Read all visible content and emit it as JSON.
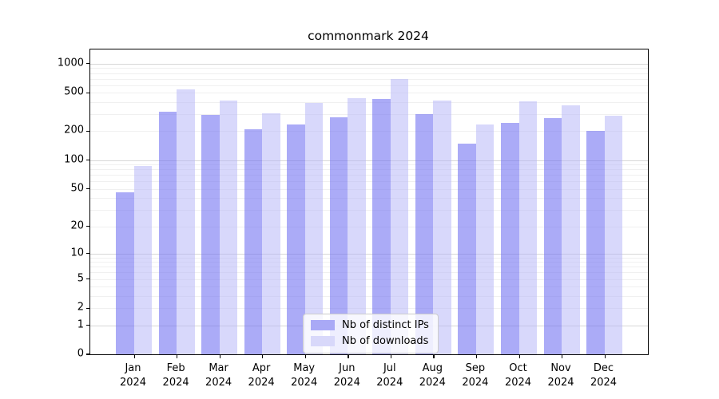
{
  "figure": {
    "background_color": "#ffffff",
    "text_color": "#000000"
  },
  "chart_data": {
    "type": "bar",
    "title": "commonmark 2024",
    "categories": [
      "Jan\n2024",
      "Feb\n2024",
      "Mar\n2024",
      "Apr\n2024",
      "May\n2024",
      "Jun\n2024",
      "Jul\n2024",
      "Aug\n2024",
      "Sep\n2024",
      "Oct\n2024",
      "Nov\n2024",
      "Dec\n2024"
    ],
    "series": [
      {
        "name": "Nb of distinct IPs",
        "color": "#a9a9f6",
        "fill_rgba": "rgba(115, 115, 242, 0.6)",
        "values": [
          46,
          320,
          295,
          211,
          234,
          278,
          432,
          298,
          148,
          246,
          276,
          202
        ]
      },
      {
        "name": "Nb of downloads",
        "color": "#d8d8fa",
        "fill_rgba": "rgba(180, 180, 248, 0.52)",
        "values": [
          87,
          545,
          417,
          309,
          391,
          436,
          699,
          412,
          237,
          407,
          372,
          292
        ]
      }
    ],
    "xlabel": "",
    "ylabel": "",
    "y_ticks": [
      0,
      1,
      2,
      5,
      10,
      20,
      50,
      100,
      200,
      500,
      1000
    ],
    "ylim": [
      0,
      1400
    ],
    "yscale": "log1p",
    "grid": "horizontal, minor + major (decades)",
    "legend": {
      "position": "lower center",
      "labels": [
        "Nb of distinct IPs",
        "Nb of downloads"
      ]
    }
  }
}
